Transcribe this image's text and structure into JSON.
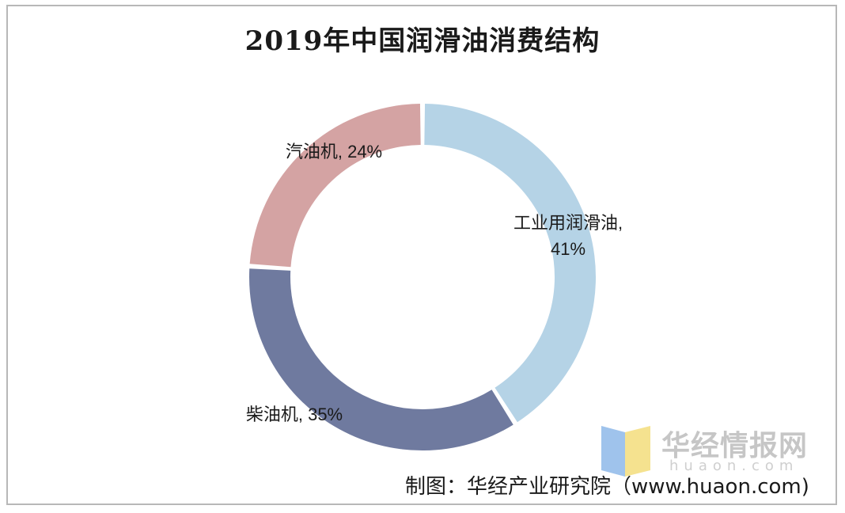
{
  "chart_data": {
    "type": "pie",
    "variant": "donut",
    "title": "2019年中国润滑油消费结构",
    "slices": [
      {
        "label": "工业用润滑油",
        "value": 41,
        "label_text": "工业用润滑油,",
        "value_text": "41%",
        "color": "#b5d3e6"
      },
      {
        "label": "柴油机",
        "value": 35,
        "label_text": "柴油机, 35%",
        "color": "#6f7a9f"
      },
      {
        "label": "汽油机",
        "value": 24,
        "label_text": "汽油机, 24%",
        "color": "#d4a3a3"
      }
    ],
    "start": "12 o'clock, clockwise",
    "legend": "none"
  },
  "watermark": {
    "name": "华经情报网",
    "url": "huaon.com",
    "icon": "huaon-logo-icon"
  },
  "source": "制图：华经产业研究院（www.huaon.com)"
}
